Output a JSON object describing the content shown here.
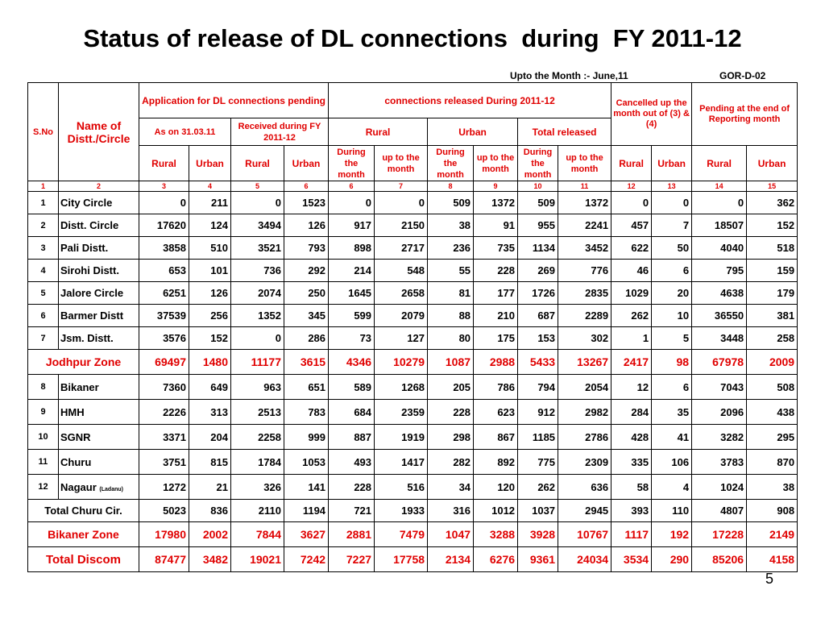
{
  "title": "Status of release of DL connections  during  FY 2011-12",
  "subtitle": "Upto the  Month :- June,11",
  "doc_code": "GOR-D-02",
  "page_number": "5",
  "header": {
    "sno": "S.No",
    "name": "Name of Distt./Circle",
    "app_pending": "Application for DL connections pending",
    "released": "connections released During 2011-12",
    "cancelled": "Cancelled up the month out of (3) & (4)",
    "pending_end": "Pending at the end of Reporting month",
    "as_on": "As on 31.03.11",
    "received": "Received during FY 2011-12",
    "rural": "Rural",
    "urban": "Urban",
    "total_released": "Total released",
    "during": "During the month",
    "upto": "up to the month"
  },
  "col_index": [
    "1",
    "2",
    "3",
    "4",
    "5",
    "6",
    "6",
    "7",
    "8",
    "9",
    "10",
    "11",
    "12",
    "13",
    "14",
    "15"
  ],
  "rows": [
    {
      "sno": "1",
      "name": "City Circle",
      "v": [
        "0",
        "211",
        "0",
        "1523",
        "0",
        "0",
        "509",
        "1372",
        "509",
        "1372",
        "0",
        "0",
        "0",
        "362"
      ]
    },
    {
      "sno": "2",
      "name": "Distt. Circle",
      "v": [
        "17620",
        "124",
        "3494",
        "126",
        "917",
        "2150",
        "38",
        "91",
        "955",
        "2241",
        "457",
        "7",
        "18507",
        "152"
      ]
    },
    {
      "sno": "3",
      "name": "Pali Distt.",
      "v": [
        "3858",
        "510",
        "3521",
        "793",
        "898",
        "2717",
        "236",
        "735",
        "1134",
        "3452",
        "622",
        "50",
        "4040",
        "518"
      ]
    },
    {
      "sno": "4",
      "name": "Sirohi Distt.",
      "v": [
        "653",
        "101",
        "736",
        "292",
        "214",
        "548",
        "55",
        "228",
        "269",
        "776",
        "46",
        "6",
        "795",
        "159"
      ]
    },
    {
      "sno": "5",
      "name": "Jalore Circle",
      "v": [
        "6251",
        "126",
        "2074",
        "250",
        "1645",
        "2658",
        "81",
        "177",
        "1726",
        "2835",
        "1029",
        "20",
        "4638",
        "179"
      ]
    },
    {
      "sno": "6",
      "name": "Barmer Distt",
      "v": [
        "37539",
        "256",
        "1352",
        "345",
        "599",
        "2079",
        "88",
        "210",
        "687",
        "2289",
        "262",
        "10",
        "36550",
        "381"
      ]
    },
    {
      "sno": "7",
      "name": "Jsm. Distt.",
      "v": [
        "3576",
        "152",
        "0",
        "286",
        "73",
        "127",
        "80",
        "175",
        "153",
        "302",
        "1",
        "5",
        "3448",
        "258"
      ]
    }
  ],
  "jodhpur_zone": {
    "name": "Jodhpur Zone",
    "v": [
      "69497",
      "1480",
      "11177",
      "3615",
      "4346",
      "10279",
      "1087",
      "2988",
      "5433",
      "13267",
      "2417",
      "98",
      "67978",
      "2009"
    ]
  },
  "rows2": [
    {
      "sno": "8",
      "name": "Bikaner",
      "v": [
        "7360",
        "649",
        "963",
        "651",
        "589",
        "1268",
        "205",
        "786",
        "794",
        "2054",
        "12",
        "6",
        "7043",
        "508"
      ]
    },
    {
      "sno": "9",
      "name": "HMH",
      "v": [
        "2226",
        "313",
        "2513",
        "783",
        "684",
        "2359",
        "228",
        "623",
        "912",
        "2982",
        "284",
        "35",
        "2096",
        "438"
      ]
    },
    {
      "sno": "10",
      "name": "SGNR",
      "v": [
        "3371",
        "204",
        "2258",
        "999",
        "887",
        "1919",
        "298",
        "867",
        "1185",
        "2786",
        "428",
        "41",
        "3282",
        "295"
      ]
    },
    {
      "sno": "11",
      "name": "Churu",
      "v": [
        "3751",
        "815",
        "1784",
        "1053",
        "493",
        "1417",
        "282",
        "892",
        "775",
        "2309",
        "335",
        "106",
        "3783",
        "870"
      ]
    }
  ],
  "row12": {
    "sno": "12",
    "name": "Nagaur",
    "name_sub": "(Ladanu)",
    "v": [
      "1272",
      "21",
      "326",
      "141",
      "228",
      "516",
      "34",
      "120",
      "262",
      "636",
      "58",
      "4",
      "1024",
      "38"
    ]
  },
  "churu_total": {
    "name": "Total Churu Cir.",
    "v": [
      "5023",
      "836",
      "2110",
      "1194",
      "721",
      "1933",
      "316",
      "1012",
      "1037",
      "2945",
      "393",
      "110",
      "4807",
      "908"
    ]
  },
  "bikaner_zone": {
    "name": "Bikaner Zone",
    "v": [
      "17980",
      "2002",
      "7844",
      "3627",
      "2881",
      "7479",
      "1047",
      "3288",
      "3928",
      "10767",
      "1117",
      "192",
      "17228",
      "2149"
    ]
  },
  "total_discom": {
    "name": "Total Discom",
    "v": [
      "87477",
      "3482",
      "19021",
      "7242",
      "7227",
      "17758",
      "2134",
      "6276",
      "9361",
      "24034",
      "3534",
      "290",
      "85206",
      "4158"
    ]
  },
  "colors": {
    "header_red": "#e00000",
    "text": "#000000",
    "border": "#000000"
  }
}
